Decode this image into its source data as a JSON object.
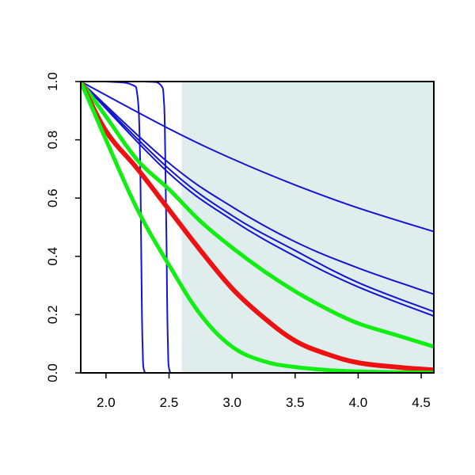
{
  "chart_data": {
    "type": "line",
    "title": "",
    "xlabel": "",
    "ylabel": "",
    "xlim": [
      1.8,
      4.6
    ],
    "ylim": [
      0.0,
      1.0
    ],
    "x_ticks": [
      2.0,
      2.5,
      3.0,
      3.5,
      4.0,
      4.5
    ],
    "x_tick_labels": [
      "2.0",
      "2.5",
      "3.0",
      "3.5",
      "4.0",
      "4.5"
    ],
    "y_ticks": [
      0.0,
      0.2,
      0.4,
      0.6,
      0.8,
      1.0
    ],
    "y_tick_labels": [
      "0.0",
      "0.2",
      "0.4",
      "0.6",
      "0.8",
      "1.0"
    ],
    "grid": false,
    "legend": "none",
    "shaded_region": {
      "x_start": 2.6,
      "x_end": 4.6,
      "color": "#e0eded"
    },
    "colors": {
      "blue": "#1414d2",
      "red": "#ee1111",
      "green": "#11ee11",
      "axis": "#000000"
    },
    "series": [
      {
        "color": "blue",
        "width": 2,
        "x": [
          1.8,
          2.0,
          2.2,
          2.25,
          2.27,
          2.28,
          2.29,
          2.31,
          2.4,
          4.6
        ],
        "y": [
          1.0,
          1.0,
          0.99,
          0.95,
          0.75,
          0.4,
          0.1,
          0.0,
          0.0,
          0.0
        ]
      },
      {
        "color": "blue",
        "width": 2,
        "x": [
          1.8,
          2.3,
          2.43,
          2.46,
          2.47,
          2.48,
          2.49,
          2.51,
          2.6,
          4.6
        ],
        "y": [
          1.0,
          1.0,
          0.99,
          0.93,
          0.75,
          0.45,
          0.12,
          0.0,
          0.0,
          0.0
        ]
      },
      {
        "color": "blue",
        "width": 2,
        "x": [
          1.8,
          2.5,
          3.0,
          3.5,
          4.0,
          4.6
        ],
        "y": [
          1.0,
          0.838,
          0.735,
          0.645,
          0.566,
          0.485
        ]
      },
      {
        "color": "blue",
        "width": 2,
        "x": [
          1.8,
          2.5,
          3.0,
          3.5,
          4.0,
          4.6
        ],
        "y": [
          1.0,
          0.72,
          0.57,
          0.45,
          0.36,
          0.27
        ]
      },
      {
        "color": "blue",
        "width": 2,
        "x": [
          1.8,
          2.5,
          3.0,
          3.5,
          4.0,
          4.6
        ],
        "y": [
          1.0,
          0.7,
          0.54,
          0.42,
          0.31,
          0.21
        ]
      },
      {
        "color": "blue",
        "width": 2,
        "x": [
          1.8,
          2.5,
          3.0,
          3.5,
          4.0,
          4.6
        ],
        "y": [
          1.0,
          0.685,
          0.525,
          0.4,
          0.295,
          0.195
        ]
      },
      {
        "color": "green",
        "width": 5,
        "x": [
          1.8,
          2.0,
          2.25,
          2.5,
          2.75,
          3.0,
          3.25,
          3.5,
          3.75,
          4.0,
          4.3,
          4.6
        ],
        "y": [
          1.0,
          0.88,
          0.73,
          0.63,
          0.52,
          0.43,
          0.35,
          0.28,
          0.22,
          0.17,
          0.13,
          0.09
        ]
      },
      {
        "color": "red",
        "width": 6,
        "x": [
          1.8,
          2.0,
          2.25,
          2.5,
          2.75,
          3.0,
          3.25,
          3.5,
          3.75,
          4.0,
          4.3,
          4.6
        ],
        "y": [
          1.0,
          0.83,
          0.7,
          0.56,
          0.42,
          0.29,
          0.19,
          0.11,
          0.065,
          0.035,
          0.02,
          0.01
        ]
      },
      {
        "color": "green",
        "width": 5,
        "x": [
          1.8,
          2.0,
          2.25,
          2.5,
          2.75,
          3.0,
          3.25,
          3.5,
          3.75,
          4.0,
          4.3,
          4.6
        ],
        "y": [
          1.0,
          0.8,
          0.56,
          0.37,
          0.2,
          0.09,
          0.04,
          0.02,
          0.01,
          0.005,
          0.002,
          0.001
        ]
      }
    ]
  }
}
